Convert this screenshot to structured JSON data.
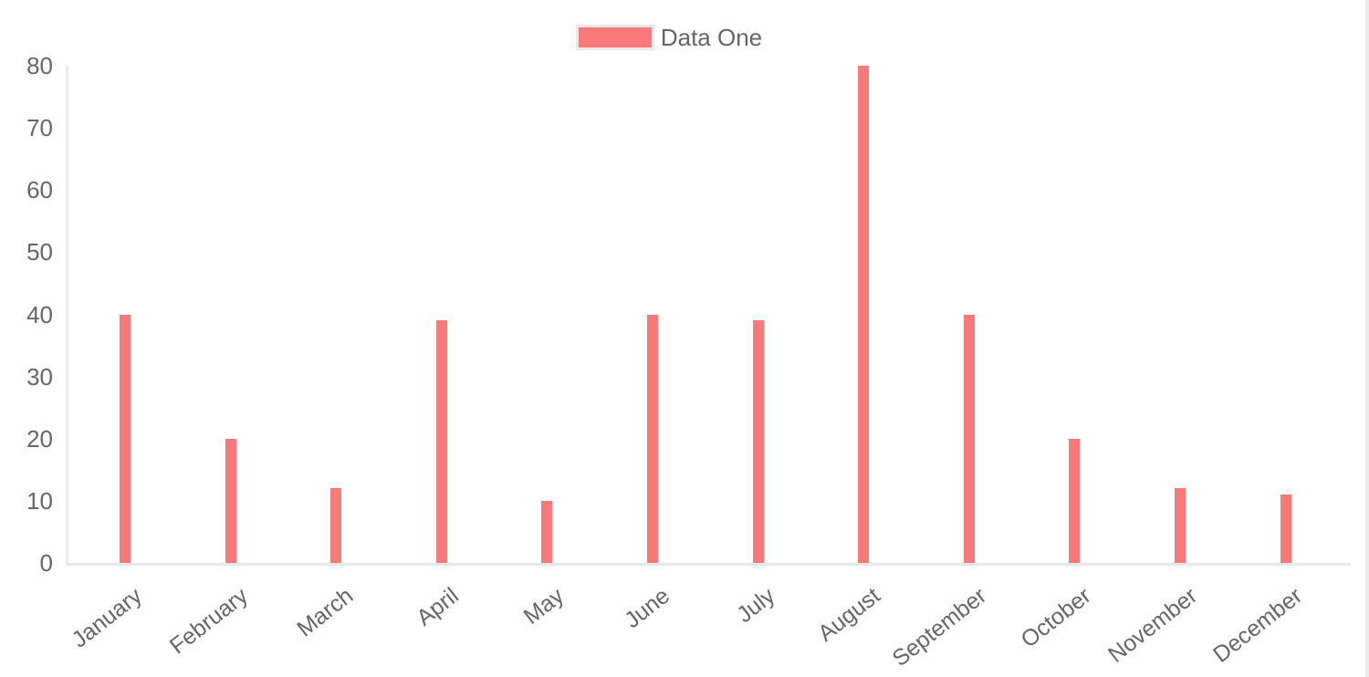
{
  "legend": {
    "position": "top",
    "items": [
      {
        "label": "Data One",
        "swatch_color": "#f87979"
      }
    ]
  },
  "chart_data": {
    "type": "bar",
    "title": "",
    "xlabel": "",
    "ylabel": "",
    "categories": [
      "January",
      "February",
      "March",
      "April",
      "May",
      "June",
      "July",
      "August",
      "September",
      "October",
      "November",
      "December"
    ],
    "series": [
      {
        "name": "Data One",
        "color": "#f87979",
        "values": [
          40,
          20,
          12,
          39,
          10,
          40,
          39,
          80,
          40,
          20,
          12,
          11
        ]
      }
    ],
    "ylim": [
      0,
      80
    ],
    "yticks": [
      0,
      10,
      20,
      30,
      40,
      50,
      60,
      70,
      80
    ],
    "grid": false,
    "legend_position": "top",
    "x_label_rotation_deg": -38,
    "axis_line_color": "#e8e8e8",
    "tick_label_color": "#666666"
  }
}
